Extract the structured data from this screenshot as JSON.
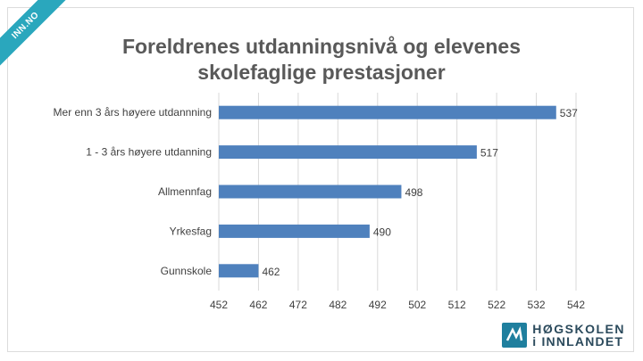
{
  "corner_badge": "INN.NO",
  "brand": {
    "line1": "HØGSKOLEN",
    "line2": "i INNLANDET"
  },
  "chart_data": {
    "type": "bar",
    "orientation": "horizontal",
    "title_lines": [
      "Foreldrenes utdanningsnivå og elevenes",
      "skolefaglige prestasjoner"
    ],
    "categories": [
      "Mer enn 3 års høyere utdannning",
      "1 - 3 års høyere utdanning",
      "Allmennfag",
      "Yrkesfag",
      "Gunnskole"
    ],
    "values": [
      537,
      517,
      498,
      490,
      462
    ],
    "xlim": [
      452,
      542
    ],
    "xticks": [
      452,
      462,
      472,
      482,
      492,
      502,
      512,
      522,
      532,
      542
    ],
    "gridlines": true,
    "data_labels": true,
    "bar_color": "#4f81bd"
  }
}
